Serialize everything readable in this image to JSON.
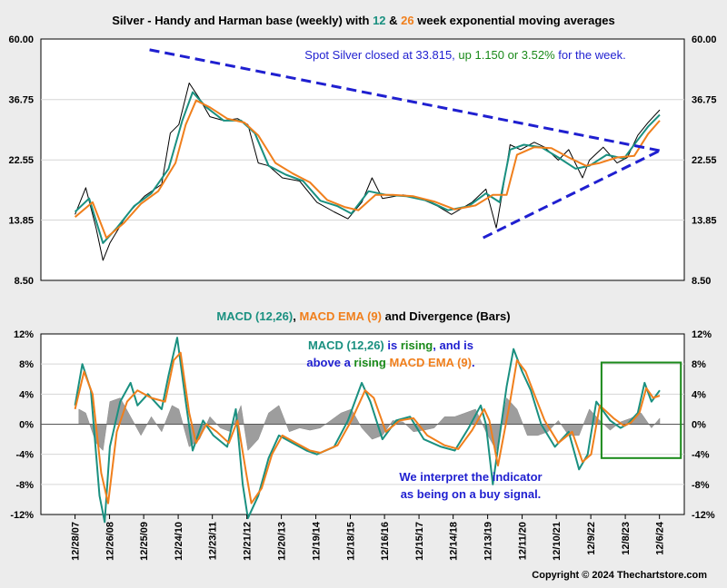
{
  "chart_data": [
    {
      "type": "line",
      "title_parts": [
        {
          "text": "Silver - Handy and Harman base (weekly) with ",
          "color": "#000000"
        },
        {
          "text": "12",
          "color": "#1a9080"
        },
        {
          "text": " & ",
          "color": "#000000"
        },
        {
          "text": "26",
          "color": "#f07f1c"
        },
        {
          "text": " week exponential moving averages",
          "color": "#000000"
        }
      ],
      "y_scale": "log",
      "ylim": [
        8.5,
        60.0
      ],
      "y_ticks": [
        "60.00",
        "36.75",
        "22.55",
        "13.85",
        "8.50"
      ],
      "y_tick_values": [
        60.0,
        36.75,
        22.55,
        13.85,
        8.5
      ],
      "annotation_parts": [
        {
          "text": "Spot Silver closed at 33.815, ",
          "color": "#1f1fd0"
        },
        {
          "text": "up 1.150 or 3.52%",
          "color": "#1a8a1a"
        },
        {
          "text": " for the week.",
          "color": "#1f1fd0"
        }
      ],
      "series": [
        {
          "key": "price",
          "color": "#000000",
          "x": [
            2007.99,
            2008.3,
            2008.6,
            2008.8,
            2009.0,
            2009.5,
            2010.0,
            2010.5,
            2010.75,
            2011.0,
            2011.3,
            2011.6,
            2011.9,
            2012.3,
            2012.7,
            2013.0,
            2013.3,
            2013.6,
            2014.0,
            2014.5,
            2015.0,
            2015.5,
            2015.9,
            2016.3,
            2016.6,
            2016.9,
            2017.5,
            2018.0,
            2018.5,
            2018.9,
            2019.5,
            2019.9,
            2020.2,
            2020.4,
            2020.6,
            2020.9,
            2021.3,
            2021.6,
            2022.0,
            2022.3,
            2022.7,
            2022.9,
            2023.3,
            2023.7,
            2024.0,
            2024.3,
            2024.6,
            2024.94
          ],
          "y": [
            14.5,
            18.0,
            13.0,
            10.0,
            11.5,
            14.5,
            16.8,
            18.5,
            28.0,
            30.0,
            42.0,
            37.0,
            32.0,
            31.0,
            31.5,
            30.0,
            22.0,
            21.5,
            19.5,
            19.0,
            16.0,
            14.8,
            14.0,
            16.0,
            19.5,
            16.5,
            17.0,
            16.5,
            15.5,
            14.5,
            16.0,
            17.8,
            13.0,
            18.0,
            25.5,
            24.5,
            26.0,
            25.0,
            22.5,
            24.5,
            19.5,
            22.5,
            25.0,
            22.0,
            23.0,
            27.5,
            30.5,
            33.815
          ]
        },
        {
          "key": "ema12",
          "color": "#1a9080",
          "x": [
            2007.99,
            2008.4,
            2008.8,
            2009.2,
            2009.7,
            2010.2,
            2010.7,
            2011.1,
            2011.4,
            2011.8,
            2012.3,
            2012.8,
            2013.2,
            2013.6,
            2014.1,
            2014.6,
            2015.1,
            2015.6,
            2016.0,
            2016.5,
            2017.0,
            2017.6,
            2018.2,
            2018.8,
            2019.4,
            2019.9,
            2020.3,
            2020.6,
            2021.0,
            2021.5,
            2022.0,
            2022.5,
            2022.9,
            2023.4,
            2023.9,
            2024.3,
            2024.6,
            2024.94
          ],
          "y": [
            14.8,
            16.5,
            11.5,
            13.0,
            15.5,
            17.2,
            21.0,
            31.0,
            39.0,
            34.5,
            31.0,
            31.0,
            28.0,
            21.5,
            20.0,
            19.0,
            16.2,
            15.5,
            14.6,
            17.5,
            17.0,
            16.8,
            16.2,
            15.0,
            15.5,
            17.2,
            16.0,
            24.5,
            25.5,
            25.0,
            23.0,
            21.0,
            21.5,
            23.5,
            22.8,
            26.5,
            29.5,
            32.5
          ]
        },
        {
          "key": "ema26",
          "color": "#f07f1c",
          "x": [
            2007.99,
            2008.5,
            2008.9,
            2009.4,
            2009.9,
            2010.4,
            2010.9,
            2011.2,
            2011.5,
            2011.9,
            2012.4,
            2012.9,
            2013.3,
            2013.8,
            2014.3,
            2014.8,
            2015.3,
            2015.8,
            2016.2,
            2016.7,
            2017.2,
            2017.8,
            2018.4,
            2019.0,
            2019.6,
            2020.1,
            2020.5,
            2020.8,
            2021.3,
            2021.8,
            2022.3,
            2022.8,
            2023.2,
            2023.7,
            2024.2,
            2024.6,
            2024.94
          ],
          "y": [
            14.2,
            16.0,
            12.0,
            13.5,
            15.8,
            17.5,
            22.0,
            30.0,
            36.5,
            34.5,
            31.5,
            30.5,
            27.5,
            22.0,
            20.2,
            18.8,
            16.3,
            15.4,
            15.0,
            17.0,
            17.0,
            16.8,
            16.1,
            15.1,
            15.6,
            17.0,
            17.0,
            23.5,
            25.0,
            24.8,
            23.0,
            21.5,
            22.0,
            23.0,
            23.3,
            27.8,
            31.0
          ]
        }
      ],
      "trendlines": [
        {
          "key": "upper",
          "color": "#1f1fd0",
          "x": [
            2010.15,
            2024.94
          ],
          "y": [
            55.0,
            24.3
          ]
        },
        {
          "key": "lower",
          "color": "#1f1fd0",
          "x": [
            2019.82,
            2024.94
          ],
          "y": [
            12.0,
            24.3
          ]
        }
      ]
    },
    {
      "type": "line",
      "title_parts": [
        {
          "text": "MACD (12,26)",
          "color": "#1a9080"
        },
        {
          "text": ", ",
          "color": "#000000"
        },
        {
          "text": "MACD EMA (9)",
          "color": "#f07f1c"
        },
        {
          "text": " and Divergence (Bars)",
          "color": "#000000"
        }
      ],
      "ylim": [
        -12,
        12
      ],
      "y_ticks": [
        "12%",
        "8%",
        "4%",
        "0%",
        "-4%",
        "-8%",
        "-12%"
      ],
      "y_tick_values": [
        12,
        8,
        4,
        0,
        -4,
        -8,
        -12
      ],
      "x_ticks": [
        "12/28/07",
        "12/26/08",
        "12/25/09",
        "12/24/10",
        "12/23/11",
        "12/21/12",
        "12/20/13",
        "12/19/14",
        "12/18/15",
        "12/16/16",
        "12/15/17",
        "12/14/18",
        "12/13/19",
        "12/11/20",
        "12/10/21",
        "12/9/22",
        "12/8/23",
        "12/6/24"
      ],
      "x_tick_values": [
        2007.99,
        2008.99,
        2009.98,
        2010.98,
        2011.97,
        2012.97,
        2013.97,
        2014.97,
        2015.97,
        2016.96,
        2017.96,
        2018.95,
        2019.95,
        2020.95,
        2021.94,
        2022.94,
        2023.94,
        2024.93
      ],
      "annotations": [
        {
          "key": "macd_note",
          "lines": [
            [
              {
                "text": "MACD (12,26)",
                "color": "#1a9080"
              },
              {
                "text": " is ",
                "color": "#1f1fd0"
              },
              {
                "text": "rising",
                "color": "#1a8a1a"
              },
              {
                "text": ", and is",
                "color": "#1f1fd0"
              }
            ],
            [
              {
                "text": "above a ",
                "color": "#1f1fd0"
              },
              {
                "text": "rising",
                "color": "#1a8a1a"
              },
              {
                "text": " ",
                "color": "#1f1fd0"
              },
              {
                "text": "MACD EMA (9)",
                "color": "#f07f1c"
              },
              {
                "text": ".",
                "color": "#1f1fd0"
              }
            ]
          ]
        },
        {
          "key": "buy_note",
          "lines": [
            [
              {
                "text": "We interpret the indicator",
                "color": "#1f1fd0"
              }
            ],
            [
              {
                "text": "as being on a buy signal.",
                "color": "#1f1fd0"
              }
            ]
          ]
        }
      ],
      "highlight_box": {
        "x": [
          2023.25,
          2025.55
        ],
        "y": [
          -4.5,
          8.2
        ],
        "color": "#1a8a1a"
      },
      "series": [
        {
          "key": "macd",
          "color": "#1a9080",
          "x": [
            2007.99,
            2008.2,
            2008.45,
            2008.7,
            2008.85,
            2009.0,
            2009.3,
            2009.6,
            2009.8,
            2010.1,
            2010.5,
            2010.7,
            2010.95,
            2011.2,
            2011.4,
            2011.7,
            2012.0,
            2012.4,
            2012.65,
            2012.85,
            2013.0,
            2013.3,
            2013.6,
            2013.9,
            2014.3,
            2014.7,
            2015.0,
            2015.5,
            2015.9,
            2016.3,
            2016.55,
            2016.9,
            2017.3,
            2017.7,
            2018.1,
            2018.6,
            2019.0,
            2019.4,
            2019.75,
            2019.9,
            2020.1,
            2020.5,
            2020.7,
            2020.95,
            2021.2,
            2021.5,
            2021.9,
            2022.3,
            2022.6,
            2022.85,
            2023.1,
            2023.5,
            2023.8,
            2024.0,
            2024.3,
            2024.5,
            2024.7,
            2024.94
          ],
          "y": [
            2.5,
            8.0,
            4.5,
            -9.5,
            -13.0,
            -3.0,
            3.0,
            5.5,
            2.5,
            4.0,
            2.0,
            6.5,
            11.5,
            3.0,
            -3.5,
            0.5,
            -1.5,
            -3.0,
            2.0,
            -8.0,
            -12.5,
            -9.5,
            -4.5,
            -1.5,
            -2.5,
            -3.5,
            -4.0,
            -3.0,
            0.5,
            5.5,
            3.0,
            -2.0,
            0.5,
            1.0,
            -2.0,
            -3.0,
            -3.5,
            -0.5,
            2.5,
            0.0,
            -8.0,
            5.0,
            10.0,
            7.0,
            4.5,
            0.0,
            -3.0,
            -1.0,
            -6.0,
            -4.0,
            3.0,
            0.5,
            -0.5,
            0.0,
            1.5,
            5.5,
            3.0,
            4.5
          ]
        },
        {
          "key": "ema9",
          "color": "#f07f1c",
          "x": [
            2007.99,
            2008.25,
            2008.5,
            2008.75,
            2008.95,
            2009.2,
            2009.5,
            2009.8,
            2010.2,
            2010.6,
            2010.85,
            2011.05,
            2011.3,
            2011.5,
            2011.8,
            2012.1,
            2012.45,
            2012.7,
            2012.95,
            2013.1,
            2013.4,
            2013.7,
            2014.0,
            2014.4,
            2014.8,
            2015.1,
            2015.6,
            2016.0,
            2016.4,
            2016.65,
            2017.0,
            2017.4,
            2017.8,
            2018.2,
            2018.7,
            2019.1,
            2019.5,
            2019.85,
            2020.0,
            2020.25,
            2020.6,
            2020.8,
            2021.05,
            2021.3,
            2021.6,
            2022.0,
            2022.4,
            2022.7,
            2022.95,
            2023.2,
            2023.6,
            2023.9,
            2024.1,
            2024.35,
            2024.55,
            2024.75,
            2024.94
          ],
          "y": [
            2.0,
            7.0,
            4.0,
            -6.5,
            -10.5,
            -1.0,
            3.0,
            4.5,
            3.5,
            3.0,
            8.5,
            9.5,
            1.5,
            -2.5,
            0.0,
            -1.0,
            -2.5,
            0.5,
            -6.5,
            -10.5,
            -8.5,
            -4.0,
            -1.5,
            -2.5,
            -3.5,
            -3.8,
            -2.8,
            0.5,
            4.5,
            3.5,
            -1.0,
            0.5,
            0.8,
            -1.5,
            -2.8,
            -3.3,
            -0.8,
            2.0,
            0.5,
            -5.5,
            3.0,
            8.5,
            7.0,
            4.0,
            0.5,
            -2.5,
            -1.0,
            -5.0,
            -4.0,
            2.5,
            0.8,
            -0.2,
            0.2,
            1.5,
            4.8,
            3.5,
            3.8
          ]
        },
        {
          "key": "divergence",
          "color": "#8c8c8c",
          "x": [
            2008.1,
            2008.3,
            2008.6,
            2008.8,
            2009.0,
            2009.3,
            2009.6,
            2009.9,
            2010.2,
            2010.5,
            2010.8,
            2011.0,
            2011.3,
            2011.6,
            2011.9,
            2012.2,
            2012.5,
            2012.8,
            2013.0,
            2013.3,
            2013.6,
            2013.9,
            2014.2,
            2014.5,
            2014.8,
            2015.1,
            2015.4,
            2015.7,
            2016.0,
            2016.3,
            2016.6,
            2016.9,
            2017.2,
            2017.5,
            2017.8,
            2018.1,
            2018.4,
            2018.7,
            2019.0,
            2019.3,
            2019.6,
            2019.9,
            2020.2,
            2020.5,
            2020.8,
            2021.1,
            2021.4,
            2021.7,
            2022.0,
            2022.3,
            2022.6,
            2022.9,
            2023.2,
            2023.5,
            2023.8,
            2024.1,
            2024.4,
            2024.7,
            2024.94
          ],
          "y": [
            2.0,
            1.5,
            -2.5,
            -3.5,
            3.0,
            3.5,
            1.0,
            -1.5,
            1.0,
            -1.0,
            2.5,
            2.0,
            -3.0,
            -2.0,
            1.0,
            -0.5,
            -1.0,
            2.5,
            -3.5,
            -2.0,
            1.5,
            2.5,
            -1.0,
            -0.5,
            -0.8,
            -0.5,
            0.5,
            1.5,
            2.0,
            -0.5,
            -2.0,
            -1.5,
            0.5,
            0.3,
            -1.0,
            -0.8,
            -0.5,
            1.0,
            1.0,
            1.5,
            2.0,
            -1.0,
            -3.5,
            3.5,
            2.0,
            -1.5,
            -1.5,
            -1.0,
            0.5,
            -1.5,
            -1.5,
            2.0,
            0.5,
            -0.8,
            0.3,
            0.8,
            1.5,
            -0.5,
            0.8
          ]
        }
      ]
    }
  ],
  "copyright": "Copyright © 2024 Thechartstore.com"
}
